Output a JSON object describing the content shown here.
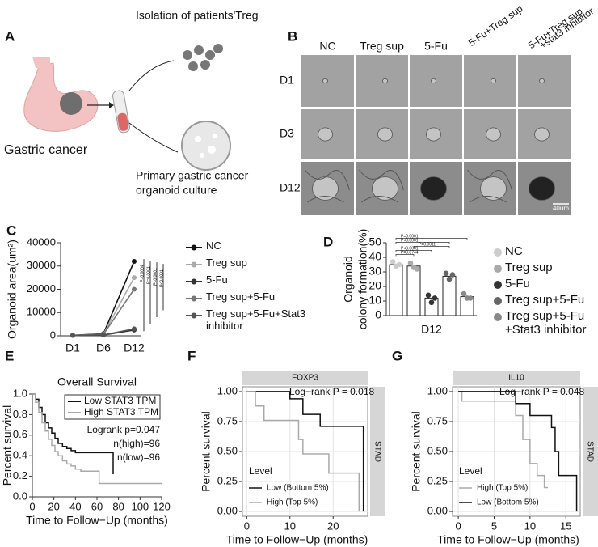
{
  "panel_labels": [
    "A",
    "B"
  ],
  "diagram": {
    "gastric_label": "Gastric cancer",
    "treg_label": "Isolation of patients'Treg",
    "organoid_label": [
      "Primary gastric cancer",
      "organoid culture"
    ]
  },
  "image_grid": {
    "columns": [
      "NC",
      "Treg sup",
      "5-Fu",
      "5-Fu+Treg sup",
      [
        "5-Fu+Treg sup",
        "+stat3 inhibitor"
      ]
    ],
    "rows": [
      "D1",
      "D3",
      "D12"
    ],
    "scale_bar": "40um"
  },
  "chart_data": [
    {
      "panel_label": "C",
      "type": "line",
      "ylabel": "Organoid area(um²)",
      "categories": [
        "D1",
        "D6",
        "D12"
      ],
      "ylim": [
        0,
        40000
      ],
      "yticks": [
        0,
        10000,
        20000,
        30000,
        40000
      ],
      "series": [
        {
          "name": "NC",
          "color": "#111111",
          "values": [
            200,
            900,
            32000
          ]
        },
        {
          "name": "Treg sup",
          "color": "#aaaaaa",
          "values": [
            200,
            700,
            25000
          ]
        },
        {
          "name": "5-Fu",
          "color": "#333333",
          "values": [
            200,
            300,
            2500
          ]
        },
        {
          "name": "Treg sup+5-Fu",
          "color": "#777777",
          "values": [
            200,
            600,
            20000
          ]
        },
        {
          "name": "Treg sup+5-Fu+Stat3 inhibitor",
          "color": "#555555",
          "values": [
            200,
            400,
            3000
          ]
        }
      ],
      "annotations": [
        "P=0.0004",
        "P=0.0001",
        "P<0.0001",
        "P<0.0001"
      ]
    },
    {
      "panel_label": "D",
      "type": "bar",
      "ylabel": [
        "Organoid",
        "colony formation(%)"
      ],
      "categories": [
        "D12"
      ],
      "ylim": [
        0,
        50
      ],
      "yticks": [
        0,
        10,
        20,
        30,
        40,
        50
      ],
      "series": [
        {
          "name": "NC",
          "color": "#cccccc",
          "values": [
            35
          ],
          "points": [
            37,
            34,
            35
          ]
        },
        {
          "name": "Treg sup",
          "color": "#aaaaaa",
          "values": [
            34
          ],
          "points": [
            36,
            33,
            32
          ]
        },
        {
          "name": "5-Fu",
          "color": "#333333",
          "values": [
            12
          ],
          "points": [
            14,
            9,
            12
          ]
        },
        {
          "name": "Treg sup+5-Fu",
          "color": "#666666",
          "values": [
            27
          ],
          "points": [
            29,
            25,
            28
          ]
        },
        {
          "name": "Treg sup+5-Fu +Stat3 inhibitor",
          "color": "#888888",
          "values": [
            13
          ],
          "points": [
            15,
            12,
            12
          ]
        }
      ],
      "annotations": [
        "P=0.8744",
        "P<0.0001",
        "P=0.0011",
        "P<0.0001",
        "P=0.0001"
      ]
    },
    {
      "panel_label": "E",
      "type": "step",
      "title": "Overall Survival",
      "xlabel": "Time to Follow−Up (months)",
      "ylabel": "Percent survival",
      "xlim": [
        0,
        120
      ],
      "xticks": [
        0,
        20,
        40,
        60,
        80,
        100,
        120
      ],
      "ylim": [
        0,
        1
      ],
      "yticks": [
        {
          "value": 0,
          "label": "0.0"
        },
        {
          "value": 0.2,
          "label": "0.2"
        },
        {
          "value": 0.4,
          "label": "0.4"
        },
        {
          "value": 0.6,
          "label": "0.6"
        },
        {
          "value": 0.8,
          "label": "0.8"
        },
        {
          "value": 1,
          "label": "1.0"
        }
      ],
      "grid": false,
      "series": [
        {
          "name": "Low STAT3 TPM",
          "color": "#111111",
          "x": [
            0,
            3,
            6,
            9,
            12,
            15,
            18,
            21,
            24,
            28,
            32,
            36,
            40,
            50,
            60,
            70,
            75
          ],
          "values": [
            1,
            0.95,
            0.87,
            0.8,
            0.72,
            0.67,
            0.62,
            0.57,
            0.52,
            0.49,
            0.47,
            0.45,
            0.43,
            0.43,
            0.43,
            0.43,
            0.22
          ]
        },
        {
          "name": "High STAT3 TPM",
          "color": "#aaaaaa",
          "x": [
            0,
            3,
            6,
            9,
            12,
            15,
            18,
            21,
            24,
            28,
            32,
            36,
            40,
            45,
            55,
            62,
            120
          ],
          "values": [
            1,
            0.92,
            0.82,
            0.72,
            0.64,
            0.56,
            0.5,
            0.44,
            0.4,
            0.35,
            0.32,
            0.3,
            0.27,
            0.25,
            0.25,
            0.13,
            0.13
          ]
        }
      ],
      "annotations": [
        "Logrank p=0.047",
        "n(high)=96",
        "n(low)=96"
      ]
    },
    {
      "panel_label": "F",
      "type": "step",
      "strip": "FOXP3",
      "side_strip": "STAD",
      "xlabel": "Time to Follow−Up (months)",
      "ylabel": "Percent survival",
      "xlim": [
        -1,
        28
      ],
      "xticks": [
        0,
        10,
        20
      ],
      "ylim": [
        -0.04,
        1.04
      ],
      "yticks": [
        {
          "value": 0,
          "label": "0.00"
        },
        {
          "value": 0.25,
          "label": "0.25"
        },
        {
          "value": 0.5,
          "label": "0.50"
        },
        {
          "value": 0.75,
          "label": "0.75"
        },
        {
          "value": 1,
          "label": "1.00"
        }
      ],
      "grid": true,
      "legend_title": "Level",
      "series": [
        {
          "name": "Low (Bottom 5%)",
          "color": "#111111",
          "x": [
            0,
            9,
            10,
            13,
            16,
            17,
            20,
            26,
            27
          ],
          "values": [
            1,
            1,
            0.94,
            0.81,
            0.81,
            0.71,
            0.71,
            0.71,
            0
          ]
        },
        {
          "name": "High (Top 5%)",
          "color": "#aaaaaa",
          "x": [
            0,
            2,
            4,
            12,
            13,
            19,
            25,
            26
          ],
          "values": [
            1,
            0.88,
            0.76,
            0.6,
            0.48,
            0.32,
            0.32,
            0
          ]
        }
      ],
      "annotations": [
        "Log−rank P = 0.018"
      ]
    },
    {
      "panel_label": "G",
      "type": "step",
      "strip": "IL10",
      "side_strip": "STAD",
      "xlabel": "Time to Follow−Up (months)",
      "ylabel": "Percent survival",
      "xlim": [
        -0.8,
        17
      ],
      "xticks": [
        0,
        5,
        10,
        15
      ],
      "ylim": [
        -0.04,
        1.04
      ],
      "yticks": [
        {
          "value": 0,
          "label": "0.00"
        },
        {
          "value": 0.25,
          "label": "0.25"
        },
        {
          "value": 0.5,
          "label": "0.50"
        },
        {
          "value": 0.75,
          "label": "0.75"
        },
        {
          "value": 1,
          "label": "1.00"
        }
      ],
      "grid": true,
      "legend_title": "Level",
      "series": [
        {
          "name": "High (Top 5%)",
          "color": "#aaaaaa",
          "x": [
            0,
            0.5,
            6,
            8,
            9,
            10,
            11,
            12,
            12.5
          ],
          "values": [
            1,
            0.92,
            0.92,
            0.8,
            0.6,
            0.4,
            0.3,
            0.2,
            0.2
          ]
        },
        {
          "name": "Low (Bottom 5%)",
          "color": "#111111",
          "x": [
            0,
            6,
            8,
            10,
            13,
            13.5,
            14,
            16,
            16.5
          ],
          "values": [
            1,
            1,
            0.9,
            0.8,
            0.7,
            0.5,
            0.3,
            0.3,
            0
          ]
        }
      ],
      "annotations": [
        "Log−rank P = 0.048"
      ]
    }
  ]
}
